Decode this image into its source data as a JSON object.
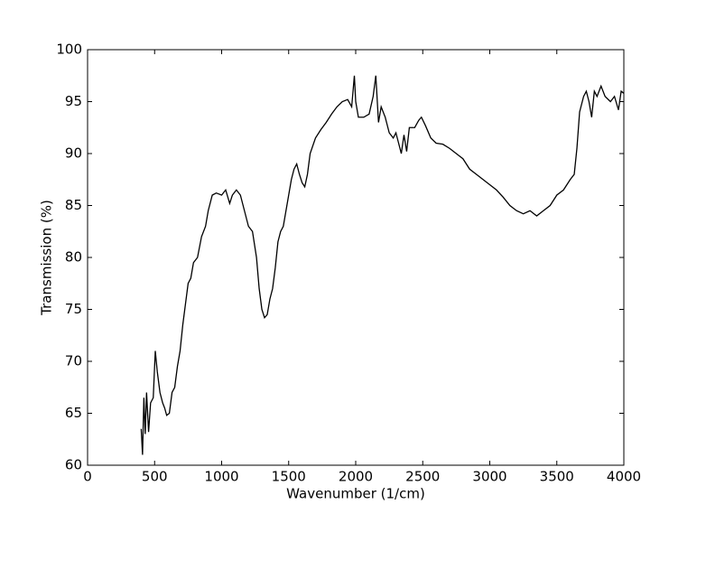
{
  "chart_data": {
    "type": "line",
    "x_label": "Wavenumber (1/cm)",
    "y_label": "Transmission (%)",
    "x": [
      400,
      410,
      420,
      430,
      440,
      455,
      470,
      490,
      505,
      520,
      540,
      560,
      575,
      590,
      610,
      630,
      650,
      670,
      690,
      710,
      730,
      750,
      770,
      790,
      820,
      850,
      880,
      900,
      930,
      960,
      1000,
      1030,
      1060,
      1080,
      1110,
      1140,
      1170,
      1200,
      1230,
      1260,
      1280,
      1300,
      1320,
      1340,
      1360,
      1380,
      1400,
      1420,
      1440,
      1460,
      1480,
      1500,
      1520,
      1540,
      1560,
      1580,
      1600,
      1620,
      1640,
      1660,
      1700,
      1740,
      1780,
      1820,
      1860,
      1900,
      1940,
      1970,
      1990,
      2000,
      2020,
      2060,
      2100,
      2130,
      2150,
      2170,
      2190,
      2220,
      2250,
      2280,
      2300,
      2320,
      2340,
      2360,
      2380,
      2400,
      2440,
      2470,
      2490,
      2520,
      2560,
      2600,
      2650,
      2700,
      2750,
      2800,
      2850,
      2900,
      2950,
      3000,
      3050,
      3100,
      3150,
      3200,
      3250,
      3300,
      3350,
      3400,
      3450,
      3500,
      3550,
      3600,
      3630,
      3650,
      3670,
      3700,
      3720,
      3740,
      3760,
      3780,
      3800,
      3830,
      3860,
      3900,
      3930,
      3960,
      3980,
      4000
    ],
    "series": [
      {
        "color": "#000000",
        "values": [
          63.5,
          61,
          66.5,
          63,
          67,
          63.2,
          66,
          66.5,
          71,
          69,
          67,
          66,
          65.5,
          64.8,
          65,
          67,
          67.5,
          69.5,
          71,
          73.5,
          75.5,
          77.5,
          78,
          79.5,
          80,
          82,
          83,
          84.5,
          86,
          86.2,
          86,
          86.5,
          85.2,
          86,
          86.5,
          86,
          84.5,
          83,
          82.5,
          80,
          77,
          75,
          74.2,
          74.5,
          76,
          77,
          79,
          81.5,
          82.5,
          83,
          84.5,
          86,
          87.5,
          88.5,
          89,
          88,
          87.2,
          86.8,
          88,
          90,
          91.5,
          92.3,
          93,
          93.8,
          94.5,
          95,
          95.2,
          94.5,
          97.5,
          95,
          93.5,
          93.5,
          93.8,
          95.5,
          97.5,
          93,
          94.5,
          93.5,
          92,
          91.5,
          92,
          91,
          90,
          91.8,
          90.2,
          92.5,
          92.5,
          93.2,
          93.5,
          92.7,
          91.5,
          91,
          90.9,
          90.5,
          90,
          89.5,
          88.5,
          88,
          87.5,
          87,
          86.5,
          85.8,
          85,
          84.5,
          84.2,
          84.5,
          84,
          84.5,
          85,
          86,
          86.5,
          87.5,
          88,
          90.5,
          94,
          95.5,
          96,
          95,
          93.5,
          96,
          95.5,
          96.5,
          95.5,
          95,
          95.5,
          94.2,
          96,
          95.8
        ]
      }
    ],
    "xlim": [
      0,
      4000
    ],
    "xticks": [
      0,
      500,
      1000,
      1500,
      2000,
      2500,
      3000,
      3500,
      4000
    ],
    "ylim": [
      60,
      100
    ],
    "yticks": [
      60,
      65,
      70,
      75,
      80,
      85,
      90,
      95,
      100
    ],
    "grid": false
  }
}
